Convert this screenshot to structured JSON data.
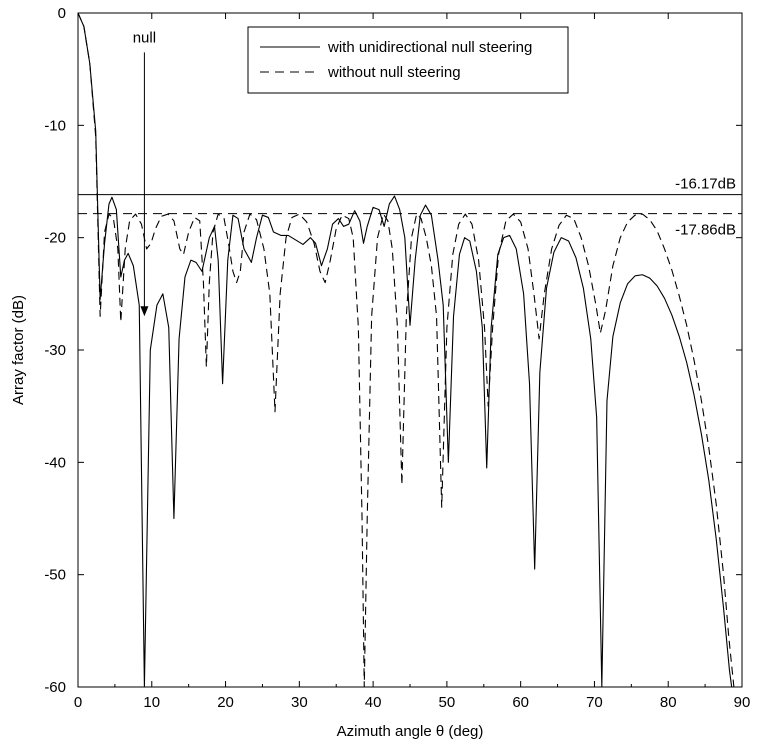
{
  "chart_data": {
    "type": "line",
    "title": "",
    "xlabel": "Azimuth angle θ (deg)",
    "ylabel": "Array factor (dB)",
    "xlim": [
      0,
      90
    ],
    "ylim": [
      -60,
      0
    ],
    "xticks": [
      0,
      10,
      20,
      30,
      40,
      50,
      60,
      70,
      80,
      90
    ],
    "yticks": [
      0,
      -10,
      -20,
      -30,
      -40,
      -50,
      -60
    ],
    "grid": false,
    "legend_position": "top-center",
    "series": [
      {
        "name": "with unidirectional null steering",
        "style": "solid",
        "points": [
          [
            0,
            0
          ],
          [
            0.8,
            -1.2
          ],
          [
            1.6,
            -4.5
          ],
          [
            2.4,
            -10.5
          ],
          [
            3.0,
            -25.5
          ],
          [
            3.6,
            -20.5
          ],
          [
            4.2,
            -17.0
          ],
          [
            4.6,
            -16.4
          ],
          [
            5.2,
            -17.5
          ],
          [
            5.8,
            -23.5
          ],
          [
            6.3,
            -22.0
          ],
          [
            6.8,
            -21.4
          ],
          [
            7.5,
            -22.5
          ],
          [
            8.3,
            -26.0
          ],
          [
            9.0,
            -60.0
          ],
          [
            9.8,
            -30.0
          ],
          [
            10.7,
            -26.0
          ],
          [
            11.5,
            -25.0
          ],
          [
            12.3,
            -28.0
          ],
          [
            13.0,
            -45.0
          ],
          [
            13.7,
            -29.0
          ],
          [
            14.5,
            -23.5
          ],
          [
            15.3,
            -22.0
          ],
          [
            16.0,
            -22.2
          ],
          [
            16.8,
            -23.0
          ],
          [
            17.8,
            -20.0
          ],
          [
            18.5,
            -19.0
          ],
          [
            19.0,
            -22.0
          ],
          [
            19.6,
            -33.0
          ],
          [
            20.3,
            -22.0
          ],
          [
            21.0,
            -18.0
          ],
          [
            21.7,
            -18.3
          ],
          [
            22.5,
            -21.0
          ],
          [
            23.5,
            -22.2
          ],
          [
            24.2,
            -20.0
          ],
          [
            25.0,
            -18.0
          ],
          [
            25.8,
            -18.2
          ],
          [
            26.5,
            -19.5
          ],
          [
            27.5,
            -19.8
          ],
          [
            28.5,
            -19.8
          ],
          [
            29.5,
            -20.2
          ],
          [
            30.5,
            -20.6
          ],
          [
            31.5,
            -20.0
          ],
          [
            32.2,
            -20.5
          ],
          [
            33.0,
            -22.5
          ],
          [
            33.8,
            -21.0
          ],
          [
            34.5,
            -18.8
          ],
          [
            35.3,
            -18.3
          ],
          [
            36.0,
            -19.0
          ],
          [
            36.7,
            -18.8
          ],
          [
            37.5,
            -17.6
          ],
          [
            38.2,
            -18.5
          ],
          [
            38.7,
            -20.5
          ],
          [
            39.2,
            -19.0
          ],
          [
            40.0,
            -17.3
          ],
          [
            40.8,
            -17.5
          ],
          [
            41.5,
            -19.0
          ],
          [
            42.2,
            -17.0
          ],
          [
            42.9,
            -16.3
          ],
          [
            43.6,
            -17.5
          ],
          [
            44.3,
            -20.0
          ],
          [
            45.0,
            -27.8
          ],
          [
            45.7,
            -22.0
          ],
          [
            46.4,
            -18.0
          ],
          [
            47.1,
            -17.1
          ],
          [
            47.9,
            -18.0
          ],
          [
            48.8,
            -22.0
          ],
          [
            49.5,
            -26.0
          ],
          [
            50.2,
            -40.0
          ],
          [
            50.9,
            -27.0
          ],
          [
            51.7,
            -21.5
          ],
          [
            52.4,
            -20.0
          ],
          [
            53.1,
            -20.3
          ],
          [
            54.0,
            -23.0
          ],
          [
            54.8,
            -28.0
          ],
          [
            55.4,
            -40.5
          ],
          [
            56.0,
            -28.0
          ],
          [
            56.9,
            -21.5
          ],
          [
            57.7,
            -20.0
          ],
          [
            58.5,
            -19.8
          ],
          [
            59.4,
            -21.0
          ],
          [
            60.4,
            -25.0
          ],
          [
            61.2,
            -33.0
          ],
          [
            61.9,
            -49.5
          ],
          [
            62.6,
            -32.0
          ],
          [
            63.5,
            -24.5
          ],
          [
            64.5,
            -21.3
          ],
          [
            65.5,
            -20.0
          ],
          [
            66.5,
            -20.3
          ],
          [
            67.5,
            -21.8
          ],
          [
            68.5,
            -24.5
          ],
          [
            69.5,
            -29.0
          ],
          [
            70.3,
            -36.0
          ],
          [
            71.0,
            -60.0
          ],
          [
            71.7,
            -34.5
          ],
          [
            72.5,
            -28.8
          ],
          [
            73.5,
            -25.8
          ],
          [
            74.5,
            -24.1
          ],
          [
            75.5,
            -23.4
          ],
          [
            76.5,
            -23.3
          ],
          [
            77.5,
            -23.6
          ],
          [
            78.5,
            -24.3
          ],
          [
            79.5,
            -25.4
          ],
          [
            80.5,
            -26.9
          ],
          [
            81.5,
            -28.8
          ],
          [
            82.5,
            -31.1
          ],
          [
            83.5,
            -34.0
          ],
          [
            84.5,
            -37.5
          ],
          [
            85.5,
            -41.6
          ],
          [
            86.5,
            -46.8
          ],
          [
            87.5,
            -53.0
          ],
          [
            88.3,
            -58.5
          ],
          [
            88.6,
            -60.0
          ]
        ]
      },
      {
        "name": "without null steering",
        "style": "dashed",
        "points": [
          [
            0,
            0
          ],
          [
            0.8,
            -1.2
          ],
          [
            1.6,
            -4.5
          ],
          [
            2.4,
            -11.0
          ],
          [
            3.0,
            -27.0
          ],
          [
            3.6,
            -19.5
          ],
          [
            4.2,
            -17.9
          ],
          [
            4.8,
            -18.3
          ],
          [
            5.4,
            -21.0
          ],
          [
            5.8,
            -27.5
          ],
          [
            6.4,
            -21.0
          ],
          [
            7.0,
            -18.5
          ],
          [
            7.8,
            -17.9
          ],
          [
            8.6,
            -18.8
          ],
          [
            9.3,
            -21.0
          ],
          [
            9.9,
            -20.5
          ],
          [
            10.5,
            -19.2
          ],
          [
            11.3,
            -18.1
          ],
          [
            12.2,
            -17.9
          ],
          [
            13.0,
            -18.5
          ],
          [
            13.8,
            -21.0
          ],
          [
            14.3,
            -21.5
          ],
          [
            15.0,
            -19.5
          ],
          [
            15.8,
            -18.2
          ],
          [
            16.5,
            -18.5
          ],
          [
            17.0,
            -24.0
          ],
          [
            17.4,
            -31.5
          ],
          [
            17.8,
            -24.0
          ],
          [
            18.3,
            -19.5
          ],
          [
            19.0,
            -17.9
          ],
          [
            19.8,
            -18.3
          ],
          [
            20.4,
            -20.5
          ],
          [
            21.0,
            -23.0
          ],
          [
            21.5,
            -24.0
          ],
          [
            22.0,
            -23.0
          ],
          [
            22.5,
            -19.5
          ],
          [
            23.3,
            -17.9
          ],
          [
            24.2,
            -18.4
          ],
          [
            25.2,
            -21.0
          ],
          [
            26.0,
            -25.0
          ],
          [
            26.7,
            -35.5
          ],
          [
            27.4,
            -25.0
          ],
          [
            28.2,
            -20.0
          ],
          [
            29.0,
            -18.2
          ],
          [
            30.0,
            -17.9
          ],
          [
            31.0,
            -18.6
          ],
          [
            32.0,
            -20.5
          ],
          [
            32.8,
            -23.0
          ],
          [
            33.5,
            -24.0
          ],
          [
            34.2,
            -22.0
          ],
          [
            35.0,
            -19.2
          ],
          [
            35.8,
            -18.0
          ],
          [
            36.7,
            -18.3
          ],
          [
            37.3,
            -20.0
          ],
          [
            38.0,
            -28.0
          ],
          [
            38.5,
            -45.0
          ],
          [
            38.8,
            -60.0
          ],
          [
            39.2,
            -45.0
          ],
          [
            39.8,
            -27.0
          ],
          [
            40.6,
            -20.0
          ],
          [
            41.4,
            -17.9
          ],
          [
            42.0,
            -18.5
          ],
          [
            42.6,
            -21.0
          ],
          [
            43.3,
            -28.0
          ],
          [
            43.9,
            -42.0
          ],
          [
            44.5,
            -27.0
          ],
          [
            45.2,
            -20.0
          ],
          [
            45.9,
            -17.9
          ],
          [
            46.5,
            -18.3
          ],
          [
            47.2,
            -20.0
          ],
          [
            47.9,
            -22.5
          ],
          [
            48.6,
            -27.0
          ],
          [
            49.3,
            -44.0
          ],
          [
            50.0,
            -28.0
          ],
          [
            50.8,
            -21.5
          ],
          [
            51.6,
            -18.8
          ],
          [
            52.5,
            -17.9
          ],
          [
            53.4,
            -18.8
          ],
          [
            54.3,
            -22.0
          ],
          [
            55.1,
            -28.0
          ],
          [
            55.6,
            -35.0
          ],
          [
            56.2,
            -28.0
          ],
          [
            57.0,
            -21.5
          ],
          [
            58.0,
            -18.5
          ],
          [
            59.0,
            -17.9
          ],
          [
            60.0,
            -18.6
          ],
          [
            61.0,
            -21.0
          ],
          [
            61.8,
            -25.0
          ],
          [
            62.5,
            -29.0
          ],
          [
            63.2,
            -25.0
          ],
          [
            64.2,
            -21.0
          ],
          [
            65.2,
            -18.9
          ],
          [
            66.2,
            -18.0
          ],
          [
            67.2,
            -18.3
          ],
          [
            68.2,
            -20.0
          ],
          [
            69.2,
            -22.5
          ],
          [
            70.2,
            -26.0
          ],
          [
            70.8,
            -28.5
          ],
          [
            71.5,
            -26.5
          ],
          [
            72.5,
            -22.5
          ],
          [
            73.5,
            -20.0
          ],
          [
            74.5,
            -18.6
          ],
          [
            75.5,
            -18.0
          ],
          [
            76.5,
            -17.9
          ],
          [
            77.5,
            -18.4
          ],
          [
            78.5,
            -19.4
          ],
          [
            79.5,
            -21.0
          ],
          [
            80.5,
            -22.9
          ],
          [
            81.5,
            -25.2
          ],
          [
            82.5,
            -27.8
          ],
          [
            83.5,
            -30.9
          ],
          [
            84.5,
            -34.5
          ],
          [
            85.5,
            -38.7
          ],
          [
            86.5,
            -43.7
          ],
          [
            87.5,
            -50.0
          ],
          [
            88.2,
            -55.5
          ],
          [
            88.9,
            -60.0
          ]
        ]
      }
    ],
    "reference_lines": [
      {
        "y": -16.17,
        "style": "solid",
        "label": "-16.17dB"
      },
      {
        "y": -17.86,
        "style": "dashed",
        "label": "-17.86dB"
      }
    ],
    "annotations": [
      {
        "text": "null",
        "x": 9.0,
        "arrow_from_y": -3.5,
        "arrow_to_y": -27.0
      }
    ]
  }
}
